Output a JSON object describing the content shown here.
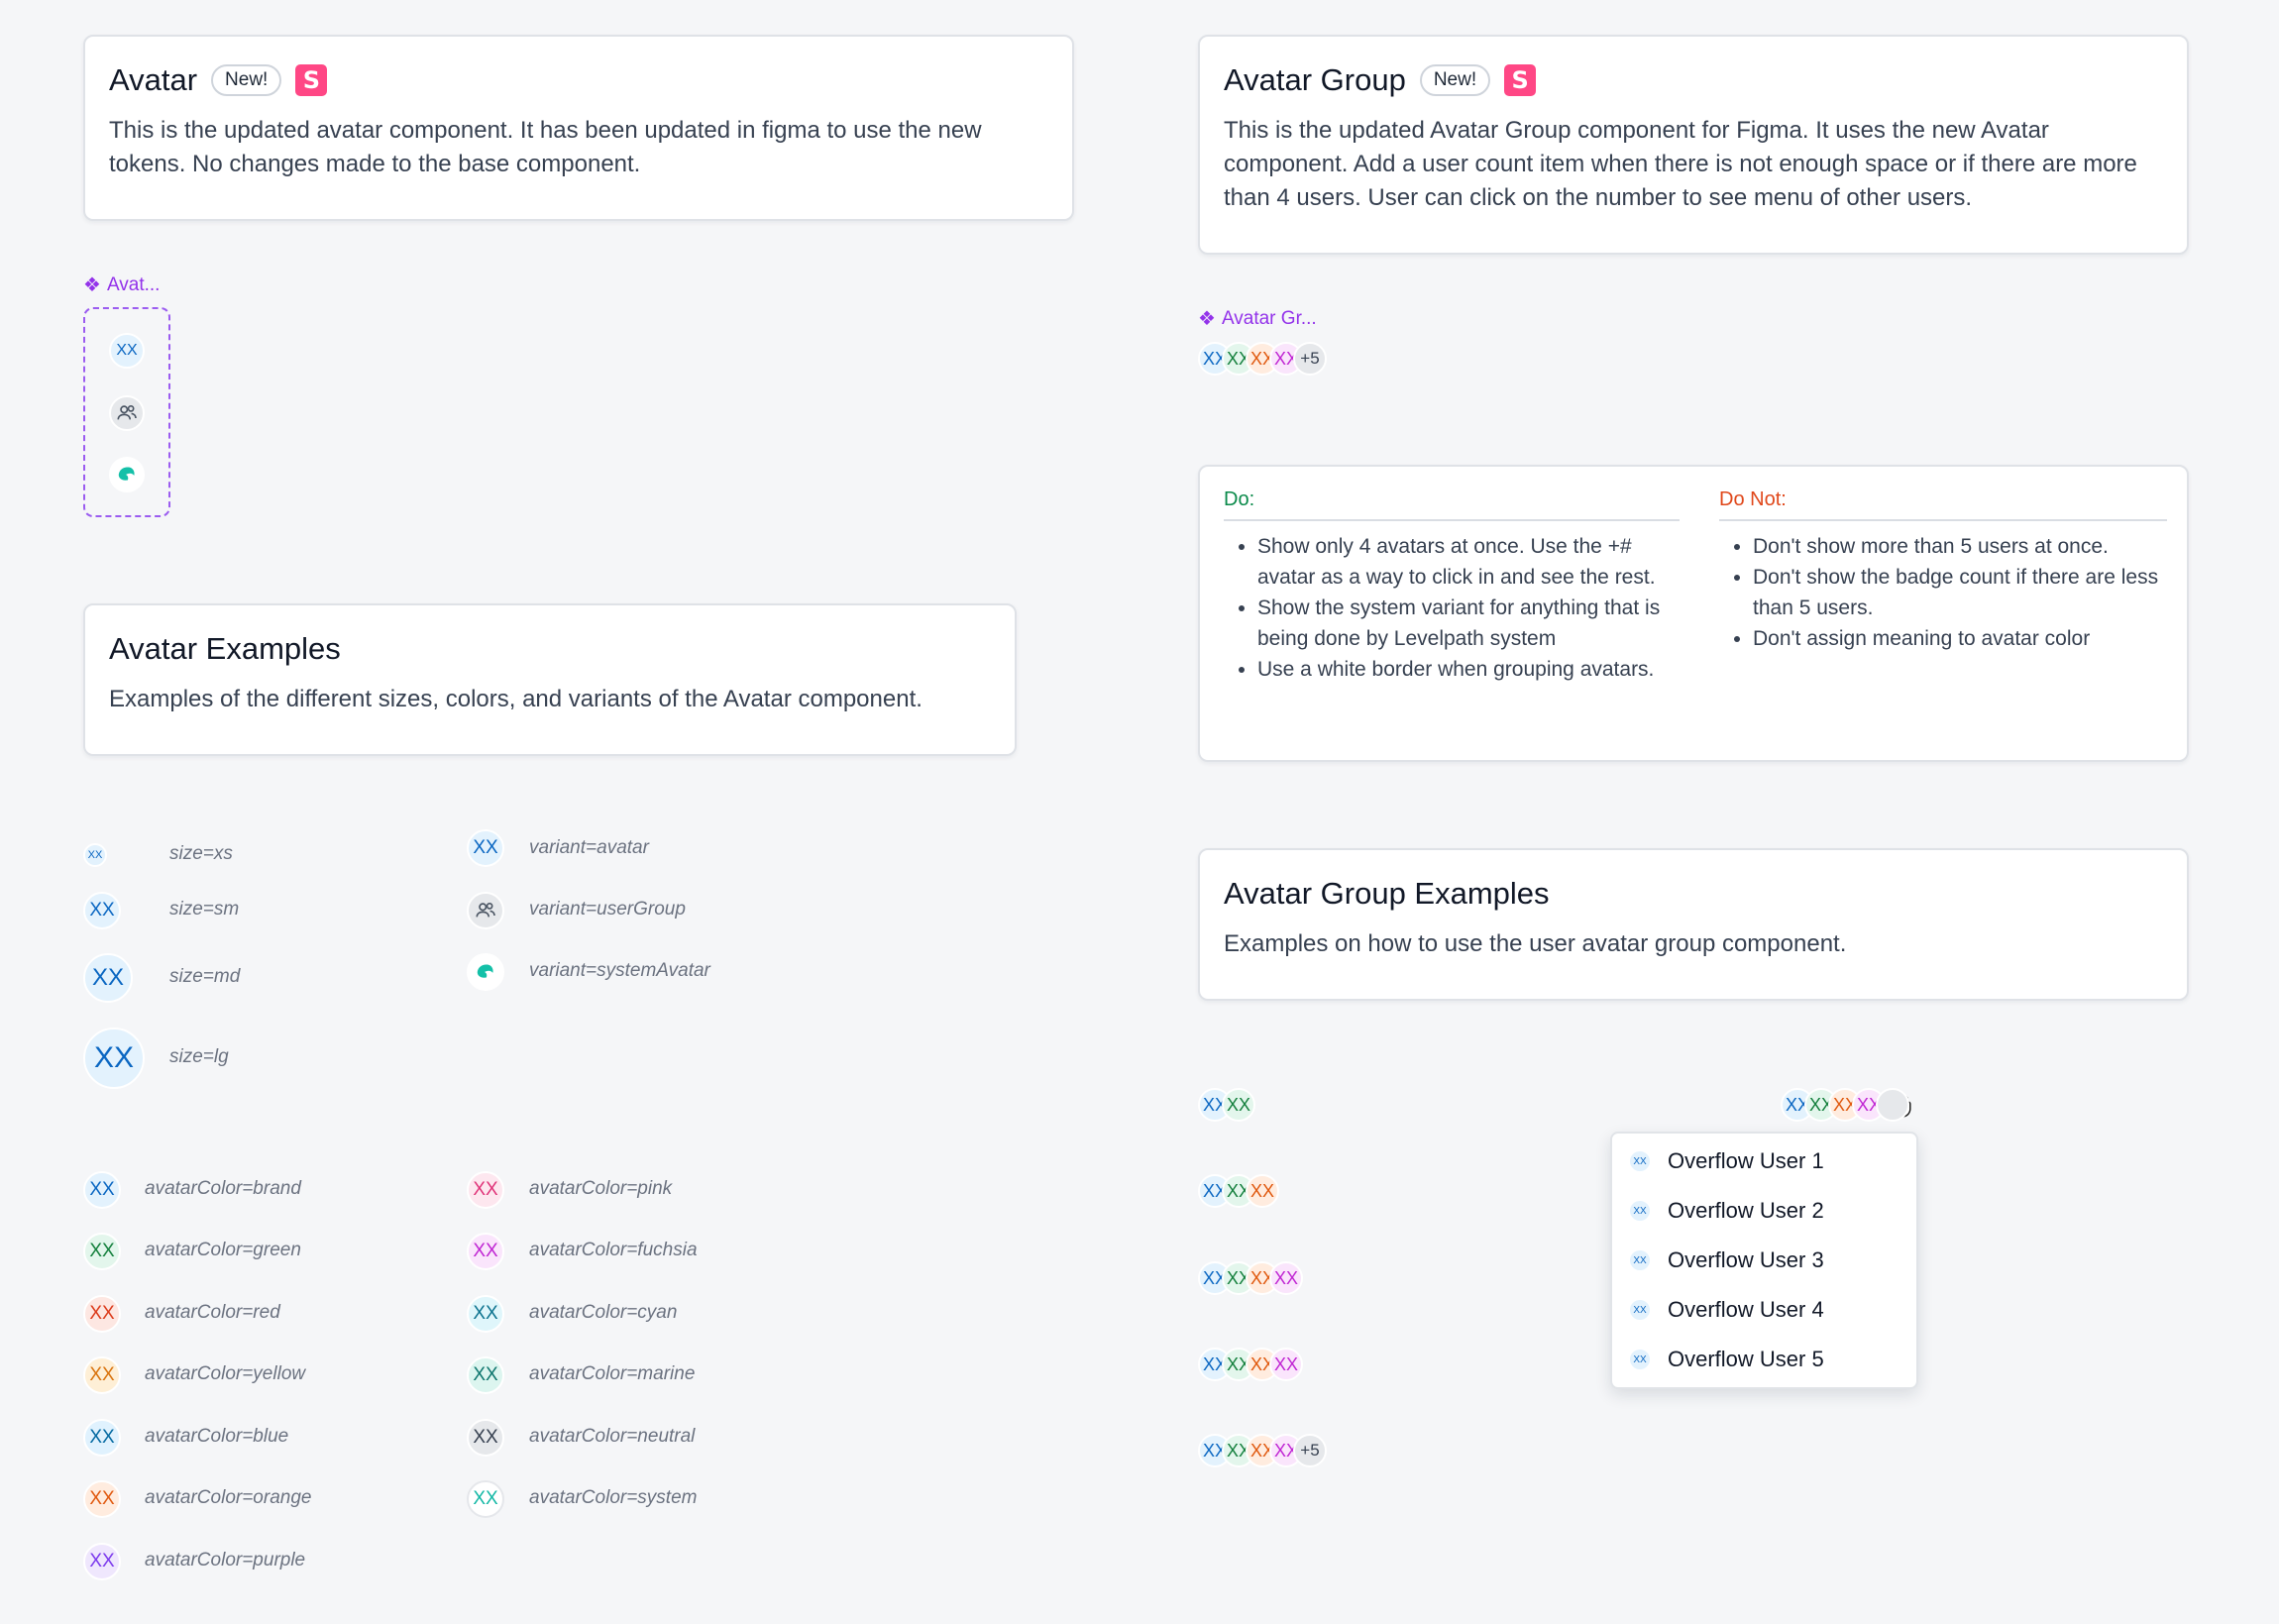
{
  "avatar_card": {
    "title": "Avatar",
    "badge": "New!",
    "storybook_icon": "storybook-icon",
    "description": "This is the updated avatar component. It has been updated in figma to use the new tokens. No changes made to the base component."
  },
  "avatar_component_label": "Avat...",
  "avatar_group_card": {
    "title": "Avatar Group",
    "badge": "New!",
    "storybook_icon": "storybook-icon",
    "description": "This is the updated Avatar Group component for Figma. It uses the new Avatar component. Add a user count item when there is not enough space or if there are more than 4 users. User can click on the number to see menu of other users."
  },
  "avatar_group_component_label": "Avatar Gr...",
  "initials": "XX",
  "overflow_count": "+5",
  "rules": {
    "do_title": "Do:",
    "do_items": [
      "Show only 4 avatars at once. Use the +# avatar as a way to click in and see the rest.",
      "Show the system variant for anything that is being done by Levelpath system",
      "Use a white border when grouping avatars."
    ],
    "dont_title": "Do Not:",
    "dont_items": [
      "Don't show more than 5 users at once.",
      "Don't show the badge count if there are less than 5 users.",
      "Don't assign meaning to avatar color"
    ]
  },
  "avatar_examples_card": {
    "title": "Avatar Examples",
    "description": "Examples of the different sizes, colors, and variants of the Avatar component."
  },
  "sizes": [
    "size=xs",
    "size=sm",
    "size=md",
    "size=lg"
  ],
  "variants": [
    "variant=avatar",
    "variant=userGroup",
    "variant=systemAvatar"
  ],
  "colors_left": [
    "avatarColor=brand",
    "avatarColor=green",
    "avatarColor=red",
    "avatarColor=yellow",
    "avatarColor=blue",
    "avatarColor=orange",
    "avatarColor=purple"
  ],
  "colors_right": [
    "avatarColor=pink",
    "avatarColor=fuchsia",
    "avatarColor=cyan",
    "avatarColor=marine",
    "avatarColor=neutral",
    "avatarColor=system"
  ],
  "avatar_group_examples_card": {
    "title": "Avatar Group Examples",
    "description": "Examples on how to use the user avatar group component."
  },
  "overflow_menu": [
    "Overflow User 1",
    "Overflow User 2",
    "Overflow User 3",
    "Overflow User 4",
    "Overflow User 5"
  ],
  "palette": {
    "brand": {
      "bg": "#e3f2fd",
      "fg": "#0b67c2"
    },
    "green": {
      "bg": "#e3f6ec",
      "fg": "#15803d"
    },
    "red": {
      "bg": "#fde7e2",
      "fg": "#dc3b1b"
    },
    "yellow": {
      "bg": "#feefd6",
      "fg": "#d9730d"
    },
    "blue": {
      "bg": "#e0f2fe",
      "fg": "#0369a1"
    },
    "orange": {
      "bg": "#ffecdf",
      "fg": "#e0590f"
    },
    "purple": {
      "bg": "#efe7fd",
      "fg": "#7c3aed"
    },
    "pink": {
      "bg": "#fde7ef",
      "fg": "#e0357a"
    },
    "fuchsia": {
      "bg": "#fae5fc",
      "fg": "#c026d3"
    },
    "cyan": {
      "bg": "#dff6fb",
      "fg": "#0e7490"
    },
    "marine": {
      "bg": "#dcf5ef",
      "fg": "#0f766e"
    },
    "neutral": {
      "bg": "#e6e8eb",
      "fg": "#374151"
    },
    "system": {
      "bg": "#ffffff",
      "fg": "#14b8a6"
    },
    "do": "#0a8a4a",
    "dont": "#e0481b"
  }
}
